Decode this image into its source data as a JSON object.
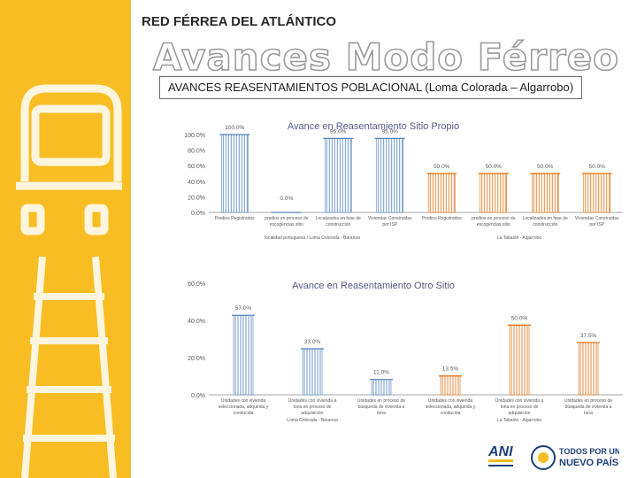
{
  "header": {
    "org": "RED FÉRREA DEL ATLÁNTICO",
    "title": "Avances Modo Férreo",
    "subtitle": "AVANCES REASENTAMIENTOS POBLACIONAL (Loma Colorada – Algarrobo)"
  },
  "colors": {
    "band": "#f8bd22",
    "series_a": "#4f81bd",
    "series_b": "#e46c0a",
    "axis": "#a6a6a6",
    "label": "#595959"
  },
  "icons": [
    "train-front-icon",
    "railroad-track-icon",
    "ani-logo-icon",
    "colombia-emblem-icon"
  ],
  "footer": {
    "ani_text": "ANI",
    "gov_line1": "TODOS POR UN",
    "gov_line2": "NUEVO PAÍS"
  },
  "chart_data": [
    {
      "type": "bar",
      "title": "Avance en Reasentamiento Sitio Propio",
      "ylim": [
        0,
        100
      ],
      "yticks": [
        "0.0%",
        "20.0%",
        "40.0%",
        "60.0%",
        "80.0%",
        "100.0%"
      ],
      "categories": [
        "Predios Registrados",
        "Predios en proceso de escogencias sitio",
        "Localizados en fase de construccion",
        "Viviendas Construidas por ISP",
        "Predios Registrados",
        "Predios en proceso de escogencias sitio",
        "Localizados en fase de construccion",
        "Viviendas Construidas por ISP"
      ],
      "category_labels": [
        "Predios Registrados",
        "predios en proceso de escogencias sitio",
        "Localizados en fase de construcción",
        "Viviendas Construidas por ISP",
        "Predios Registrados",
        "predios en proceso de escogencias sitio",
        "Localizados en fase de construcción",
        "Viviendas Construidas por ISP"
      ],
      "groups": [
        {
          "label": "Localidad portuguesa / Loma Colorada - Baranoa",
          "color": "#4f81bd",
          "values": [
            100.0,
            0.0,
            95.0,
            95.0
          ]
        },
        {
          "label": "La Tabalón - Algarrobo",
          "color": "#e46c0a",
          "values": [
            50.0,
            50.0,
            50.0,
            50.0
          ]
        }
      ],
      "data_labels": [
        "100.0%",
        "0.0%",
        "95.0%",
        "95.0%",
        "50.0%",
        "50.0%",
        "50.0%",
        "50.0%"
      ],
      "group_labels": [
        "localidad portuguesa / Loma Colorada - Baranoa",
        "La Tabalón - Algarrobo"
      ],
      "grid": false,
      "legend": "none"
    },
    {
      "type": "bar",
      "title": "Avance en Reasentamiento Otro Sitio",
      "ylim": [
        0,
        80
      ],
      "yticks": [
        "0.0%",
        "20.0%",
        "40.0%",
        "60.0%"
      ],
      "category_labels": [
        "Unidades con vivienda seleccionada, adquirida y conducida",
        "Unidades con vivienda a tona en proceso de adquisición",
        "Unidades en proceso de búsqueda de vivienda a tona",
        "Unidades con vivienda seleccionada, adquirida y conducida",
        "Unidades con vivienda a tona en proceso de adquisición",
        "Unidades en proceso de búsqueda de vivienda a tona"
      ],
      "groups": [
        {
          "label": "Loma Colorada - Baranoa",
          "color": "#4f81bd",
          "values": [
            57.0,
            33.0,
            11.0
          ]
        },
        {
          "label": "La Tabalón - Algarrobo",
          "color": "#e46c0a",
          "values": [
            13.5,
            50.0,
            37.5
          ]
        }
      ],
      "data_labels": [
        "57.0%",
        "33.0%",
        "11.0%",
        "13.5%",
        "50.0%",
        "37.5%"
      ],
      "group_labels": [
        "Loma Colorada - Baranoa",
        "La Tabalón - Algarrobo"
      ],
      "grid": false,
      "legend": "none"
    }
  ]
}
